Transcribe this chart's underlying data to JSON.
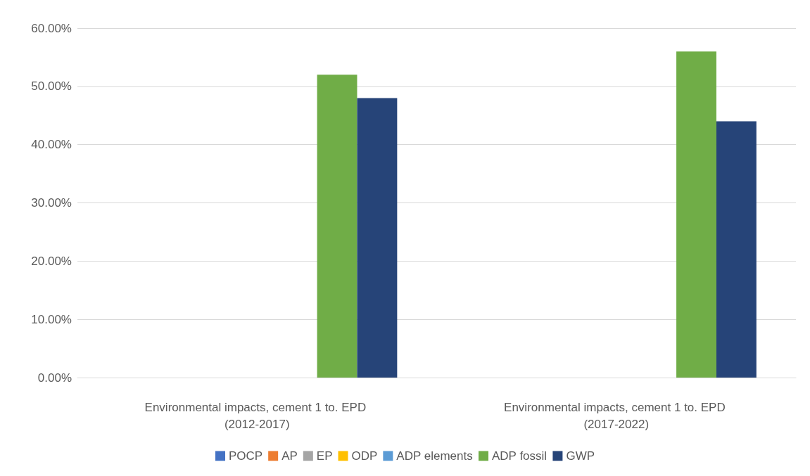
{
  "chart_data": {
    "type": "bar",
    "categories": [
      "Environmental impacts, cement 1 to. EPD (2012-2017)",
      "Environmental impacts, cement 1 to. EPD (2017-2022)"
    ],
    "series": [
      {
        "name": "POCP",
        "color": "#4472c4",
        "values": [
          0,
          0
        ]
      },
      {
        "name": "AP",
        "color": "#ed7d31",
        "values": [
          0,
          0
        ]
      },
      {
        "name": "EP",
        "color": "#a5a5a5",
        "values": [
          0,
          0
        ]
      },
      {
        "name": "ODP",
        "color": "#ffc000",
        "values": [
          0,
          0
        ]
      },
      {
        "name": "ADP elements",
        "color": "#5b9bd5",
        "values": [
          0,
          0
        ]
      },
      {
        "name": "ADP fossil",
        "color": "#70ad47",
        "values": [
          52,
          56
        ]
      },
      {
        "name": "GWP",
        "color": "#264478",
        "values": [
          48,
          44
        ]
      }
    ],
    "ylim": [
      0,
      60
    ],
    "yticks": [
      {
        "value": 0,
        "label": "0.00%"
      },
      {
        "value": 10,
        "label": "10.00%"
      },
      {
        "value": 20,
        "label": "20.00%"
      },
      {
        "value": 30,
        "label": "30.00%"
      },
      {
        "value": 40,
        "label": "40.00%"
      },
      {
        "value": 50,
        "label": "50.00%"
      },
      {
        "value": 60,
        "label": "60.00%"
      }
    ],
    "grid": "y",
    "legend": "bottom"
  }
}
